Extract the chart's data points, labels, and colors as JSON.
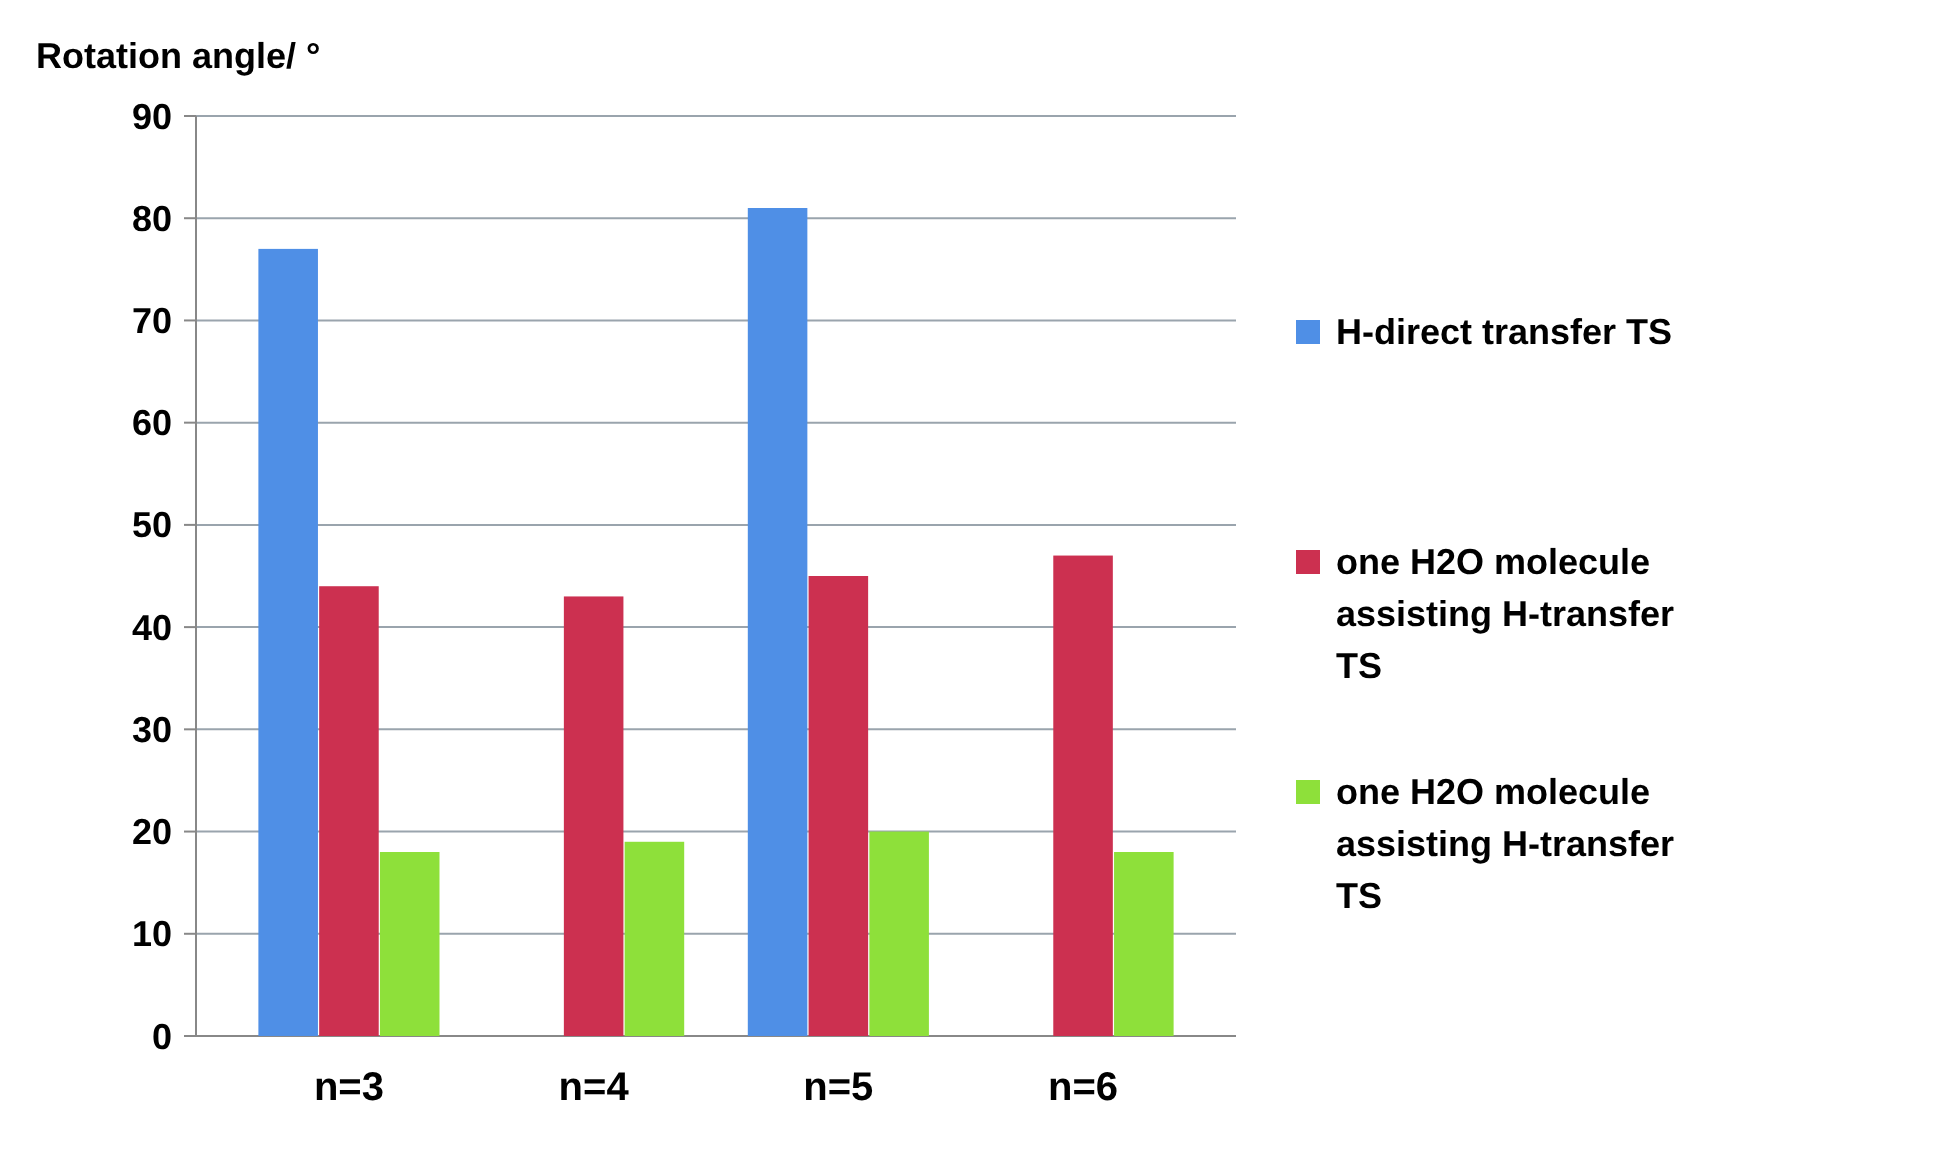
{
  "chart_data": {
    "type": "bar",
    "ylabel": "Rotation angle/ °",
    "categories": [
      "n=3",
      "n=4",
      "n=5",
      "n=6"
    ],
    "series": [
      {
        "name": "H-direct transfer TS",
        "color": "#4f8fe6",
        "values": [
          77,
          null,
          81,
          null
        ]
      },
      {
        "name": "one H2O molecule assisting H-transfer TS",
        "color": "#cc3050",
        "values": [
          44,
          43,
          45,
          47
        ]
      },
      {
        "name": "one H2O molecule assisting H-transfer TS",
        "color": "#8ee03a",
        "values": [
          18,
          19,
          20,
          18
        ]
      }
    ],
    "ylim": [
      0,
      90
    ],
    "yticks": [
      0,
      10,
      20,
      30,
      40,
      50,
      60,
      70,
      80,
      90
    ],
    "grid": "y",
    "legend": "right"
  }
}
